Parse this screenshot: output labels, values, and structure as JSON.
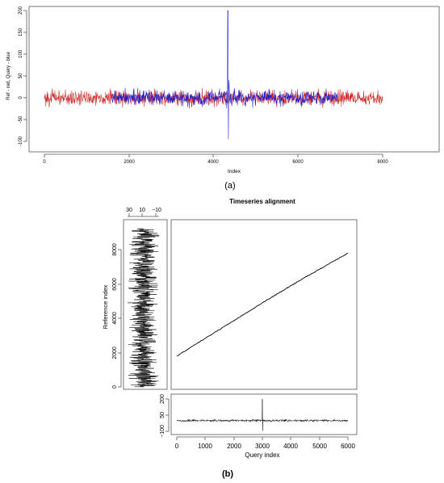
{
  "panel_labels": {
    "a": "(a)",
    "b": "(b)"
  },
  "colors": {
    "reference": "#cc2222",
    "query": "#1a1acc",
    "black": "#000000"
  },
  "chart_data": [
    {
      "id": "a",
      "type": "line",
      "xlabel": "Index",
      "ylabel": "Ref - red, Query - blue",
      "xlim": [
        0,
        9000
      ],
      "ylim": [
        -100,
        200
      ],
      "x_ticks": [
        "0",
        "2000",
        "4000",
        "6000",
        "8000"
      ],
      "y_ticks": [
        "-100",
        "-50",
        "0",
        "50",
        "100",
        "150",
        "200"
      ],
      "series": [
        {
          "color": "#cc2222",
          "x_range": [
            0,
            9000
          ],
          "mean": 0,
          "amplitude": 15
        },
        {
          "color": "#1a1acc",
          "x_range": [
            1800,
            7800
          ],
          "mean": 0,
          "amplitude": 15,
          "spike": {
            "x": 4880,
            "max": 200,
            "min": -95
          }
        }
      ]
    },
    {
      "id": "b-main",
      "type": "line",
      "title": "Timeseries alignment",
      "xlim": [
        0,
        6000
      ],
      "ylim": [
        0,
        9000
      ],
      "points": [
        [
          0,
          1800
        ],
        [
          3000,
          4900
        ],
        [
          4300,
          6200
        ],
        [
          6000,
          7800
        ]
      ]
    },
    {
      "id": "b-left",
      "type": "line",
      "orientation": "vertical",
      "ylabel": "Reference index",
      "value_ticks": [
        "30",
        "10",
        "−10"
      ],
      "index_ticks": [
        "0",
        "2000",
        "4000",
        "6000",
        "8000"
      ],
      "index_range": [
        0,
        9000
      ],
      "amplitude": 15
    },
    {
      "id": "b-bottom",
      "type": "line",
      "xlabel": "Query index",
      "x_ticks": [
        "0",
        "1000",
        "2000",
        "3000",
        "4000",
        "5000",
        "6000"
      ],
      "y_ticks": [
        "−100",
        "50",
        "200"
      ],
      "xlim": [
        0,
        6000
      ],
      "ylim": [
        -100,
        200
      ],
      "amplitude": 15,
      "spike": {
        "x": 3000,
        "max": 200,
        "min": -95
      }
    }
  ]
}
